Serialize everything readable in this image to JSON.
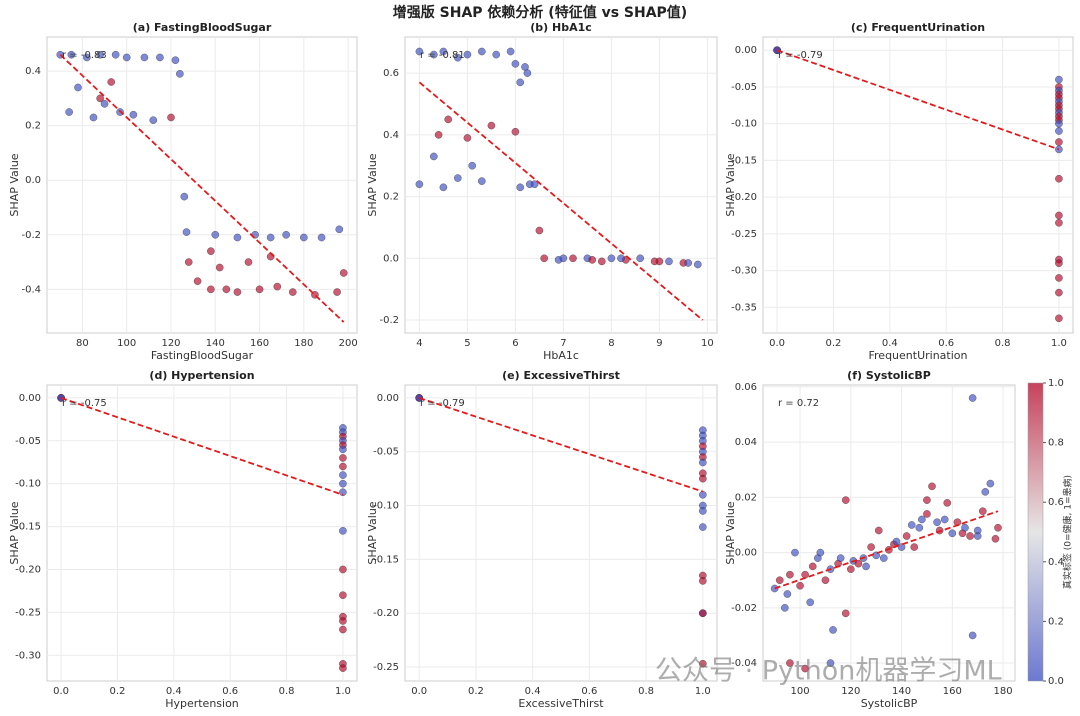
{
  "title": "增强版 SHAP 依赖分析 (特征值 vs SHAP值)",
  "watermark": "公众号 · Python机器学习ML",
  "colorbar": {
    "label": "真实标签 (0=健康, 1=患病)",
    "clim": [
      0,
      1
    ],
    "cmap": [
      "#3b4cc0",
      "#dddddd",
      "#b40426"
    ],
    "ticks": [
      {
        "value": 0,
        "label": "0.0"
      },
      0.2,
      0.4,
      0.6,
      0.8,
      {
        "value": 1,
        "label": "1.0"
      }
    ]
  },
  "chart_data": [
    {
      "type": "scatter",
      "title": "(a) FastingBloodSugar",
      "xlabel": "FastingBloodSugar",
      "ylabel": "SHAP Value",
      "annotation": "r = -0.83",
      "x": [
        70,
        75,
        82,
        88,
        95,
        100,
        108,
        115,
        122,
        124,
        74,
        78,
        85,
        90,
        97,
        103,
        112,
        120,
        93,
        88,
        126,
        127,
        140,
        150,
        158,
        165,
        172,
        180,
        188,
        196,
        128,
        132,
        138,
        145,
        150,
        160,
        168,
        175,
        185,
        195,
        138,
        155,
        165,
        198,
        142
      ],
      "y": [
        0.46,
        0.46,
        0.45,
        0.46,
        0.46,
        0.45,
        0.45,
        0.45,
        0.44,
        0.39,
        0.25,
        0.34,
        0.23,
        0.28,
        0.25,
        0.24,
        0.22,
        0.23,
        0.36,
        0.3,
        -0.06,
        -0.19,
        -0.2,
        -0.21,
        -0.2,
        -0.21,
        -0.2,
        -0.21,
        -0.21,
        -0.18,
        -0.3,
        -0.37,
        -0.4,
        -0.4,
        -0.41,
        -0.4,
        -0.39,
        -0.41,
        -0.42,
        -0.41,
        -0.26,
        -0.3,
        -0.28,
        -0.34,
        -0.32
      ],
      "c": [
        0,
        0,
        0,
        0,
        0,
        0,
        0,
        0,
        0,
        0,
        0,
        0,
        0,
        0,
        0,
        0,
        0,
        1,
        1,
        1,
        0,
        0,
        0,
        0,
        0,
        0,
        0,
        0,
        0,
        0,
        1,
        1,
        1,
        1,
        1,
        1,
        1,
        1,
        1,
        1,
        1,
        1,
        1,
        1,
        1
      ],
      "trend": {
        "x": [
          70,
          198
        ],
        "y": [
          0.46,
          -0.52
        ]
      },
      "xlim": [
        64,
        204
      ],
      "ylim": [
        -0.56,
        0.525
      ],
      "xticks": [
        80,
        100,
        120,
        140,
        160,
        180,
        200
      ],
      "yticks": [
        -0.4,
        -0.2,
        {
          "value": 0,
          "label": "0.0"
        },
        0.2,
        0.4
      ]
    },
    {
      "type": "scatter",
      "title": "(b) HbA1c",
      "xlabel": "HbA1c",
      "ylabel": "SHAP Value",
      "annotation": "r = -0.81",
      "x": [
        4.0,
        4.3,
        4.5,
        4.8,
        5.0,
        5.3,
        5.6,
        5.9,
        6.0,
        6.2,
        6.25,
        6.1,
        4.0,
        4.3,
        4.5,
        4.8,
        5.1,
        5.3,
        6.1,
        6.3,
        6.4,
        4.4,
        4.6,
        5.0,
        5.5,
        6.0,
        6.5,
        6.6,
        6.9,
        7.2,
        7.5,
        7.8,
        8.0,
        8.3,
        8.6,
        8.9,
        9.2,
        9.5,
        9.8,
        7.0,
        7.6,
        8.2,
        9.0,
        9.6
      ],
      "y": [
        0.67,
        0.66,
        0.67,
        0.65,
        0.66,
        0.67,
        0.66,
        0.67,
        0.63,
        0.62,
        0.6,
        0.57,
        0.24,
        0.33,
        0.23,
        0.26,
        0.3,
        0.25,
        0.23,
        0.24,
        0.24,
        0.4,
        0.45,
        0.39,
        0.43,
        0.41,
        0.09,
        0,
        -0.005,
        0,
        0,
        -0.01,
        0,
        -0.005,
        0,
        -0.01,
        -0.01,
        -0.015,
        -0.02,
        0,
        -0.005,
        0,
        -0.01,
        -0.015
      ],
      "c": [
        0,
        0,
        0,
        0,
        0,
        0,
        0,
        0,
        0,
        0,
        0,
        0,
        0,
        0,
        0,
        0,
        0,
        0,
        0,
        0,
        0,
        1,
        1,
        1,
        1,
        1,
        1,
        1,
        0,
        1,
        0,
        1,
        0,
        1,
        0,
        1,
        0,
        1,
        0,
        0,
        1,
        0,
        1,
        0
      ],
      "trend": {
        "x": [
          4,
          9.9
        ],
        "y": [
          0.57,
          -0.2
        ]
      },
      "xlim": [
        3.7,
        10.2
      ],
      "ylim": [
        -0.242,
        0.717
      ],
      "xticks": [
        4,
        5,
        6,
        7,
        8,
        9,
        10
      ],
      "yticks": [
        -0.2,
        {
          "value": 0,
          "label": "0.0"
        },
        0.2,
        0.4,
        0.6
      ]
    },
    {
      "type": "scatter",
      "title": "(c) FrequentUrination",
      "xlabel": "FrequentUrination",
      "ylabel": "SHAP Value",
      "annotation": "r = -0.79",
      "x": [
        0,
        0,
        0,
        1,
        1,
        1,
        1,
        1,
        1,
        1,
        1,
        1,
        1,
        1,
        1,
        1,
        1,
        1,
        1,
        1,
        1,
        1,
        1,
        1,
        1,
        1
      ],
      "y": [
        0,
        0,
        0,
        -0.04,
        -0.05,
        -0.055,
        -0.06,
        -0.065,
        -0.07,
        -0.075,
        -0.08,
        -0.085,
        -0.09,
        -0.095,
        -0.1,
        -0.11,
        -0.125,
        -0.135,
        -0.175,
        -0.225,
        -0.235,
        -0.285,
        -0.29,
        -0.31,
        -0.33,
        -0.365
      ],
      "c": [
        0,
        1,
        0,
        0,
        1,
        0,
        1,
        1,
        0,
        1,
        1,
        0,
        1,
        1,
        0,
        0,
        1,
        0,
        1,
        1,
        1,
        1,
        1,
        1,
        1,
        1
      ],
      "trend": {
        "x": [
          0,
          1
        ],
        "y": [
          0,
          -0.135
        ]
      },
      "xlim": [
        -0.05,
        1.05
      ],
      "ylim": [
        -0.385,
        0.018
      ],
      "xticks": [
        {
          "value": 0,
          "label": "0.0"
        },
        0.2,
        0.4,
        0.6,
        0.8,
        {
          "value": 1,
          "label": "1.0"
        }
      ],
      "yticks": [
        {
          "value": 0,
          "label": "0.00"
        },
        -0.05,
        {
          "value": -0.1,
          "label": "-0.10"
        },
        -0.15,
        {
          "value": -0.2,
          "label": "-0.20"
        },
        -0.25,
        {
          "value": -0.3,
          "label": "-0.30"
        },
        -0.35
      ]
    },
    {
      "type": "scatter",
      "title": "(d) Hypertension",
      "xlabel": "Hypertension",
      "ylabel": "SHAP Value",
      "annotation": "r = -0.75",
      "x": [
        0,
        0,
        0,
        1,
        1,
        1,
        1,
        1,
        1,
        1,
        1,
        1,
        1,
        1,
        1,
        1,
        1,
        1,
        1,
        1,
        1,
        1
      ],
      "y": [
        0,
        0,
        0,
        -0.035,
        -0.04,
        -0.045,
        -0.05,
        -0.055,
        -0.06,
        -0.07,
        -0.08,
        -0.09,
        -0.1,
        -0.11,
        -0.155,
        -0.2,
        -0.23,
        -0.255,
        -0.26,
        -0.27,
        -0.31,
        -0.315
      ],
      "c": [
        0,
        1,
        0,
        0,
        0,
        1,
        0,
        1,
        0,
        1,
        1,
        0,
        0,
        0,
        0,
        1,
        1,
        1,
        1,
        1,
        1,
        1
      ],
      "trend": {
        "x": [
          0,
          1
        ],
        "y": [
          0,
          -0.113
        ]
      },
      "xlim": [
        -0.05,
        1.05
      ],
      "ylim": [
        -0.33,
        0.015
      ],
      "xticks": [
        {
          "value": 0,
          "label": "0.0"
        },
        0.2,
        0.4,
        0.6,
        0.8,
        {
          "value": 1,
          "label": "1.0"
        }
      ],
      "yticks": [
        {
          "value": 0,
          "label": "0.00"
        },
        -0.05,
        {
          "value": -0.1,
          "label": "-0.10"
        },
        -0.15,
        {
          "value": -0.2,
          "label": "-0.20"
        },
        -0.25,
        {
          "value": -0.3,
          "label": "-0.30"
        }
      ]
    },
    {
      "type": "scatter",
      "title": "(e) ExcessiveThirst",
      "xlabel": "ExcessiveThirst",
      "ylabel": "SHAP Value",
      "annotation": "r = -0.79",
      "x": [
        0,
        0,
        0,
        1,
        1,
        1,
        1,
        1,
        1,
        1,
        1,
        1,
        1,
        1,
        1,
        1,
        1,
        1,
        1,
        1,
        1
      ],
      "y": [
        0,
        0,
        0,
        -0.03,
        -0.035,
        -0.04,
        -0.045,
        -0.05,
        -0.055,
        -0.06,
        -0.07,
        -0.075,
        -0.09,
        -0.1,
        -0.105,
        -0.12,
        -0.165,
        -0.17,
        -0.2,
        -0.2,
        -0.247
      ],
      "c": [
        0,
        1,
        0,
        0,
        0,
        0,
        1,
        0,
        1,
        0,
        1,
        1,
        0,
        0,
        0,
        0,
        1,
        1,
        0,
        1,
        1
      ],
      "trend": {
        "x": [
          0,
          1
        ],
        "y": [
          0,
          -0.087
        ]
      },
      "xlim": [
        -0.05,
        1.05
      ],
      "ylim": [
        -0.263,
        0.012
      ],
      "xticks": [
        {
          "value": 0,
          "label": "0.0"
        },
        0.2,
        0.4,
        0.6,
        0.8,
        {
          "value": 1,
          "label": "1.0"
        }
      ],
      "yticks": [
        {
          "value": 0,
          "label": "0.00"
        },
        -0.05,
        {
          "value": -0.1,
          "label": "-0.10"
        },
        -0.15,
        {
          "value": -0.2,
          "label": "-0.20"
        },
        -0.25
      ]
    },
    {
      "type": "scatter",
      "title": "(f) SystolicBP",
      "xlabel": "SystolicBP",
      "ylabel": "SHAP Value",
      "annotation": "r = 0.72",
      "x": [
        90,
        92,
        94,
        95,
        96,
        98,
        100,
        102,
        104,
        105,
        107,
        108,
        110,
        112,
        113,
        115,
        116,
        118,
        120,
        121,
        123,
        125,
        126,
        128,
        130,
        131,
        133,
        135,
        137,
        138,
        140,
        142,
        144,
        145,
        147,
        148,
        150,
        152,
        154,
        155,
        157,
        158,
        160,
        162,
        164,
        165,
        167,
        168,
        170,
        172,
        173,
        175,
        177,
        178,
        96,
        112,
        118,
        150,
        168,
        170,
        102
      ],
      "y": [
        -0.013,
        -0.01,
        -0.02,
        -0.015,
        -0.008,
        0,
        -0.012,
        -0.008,
        -0.018,
        -0.005,
        -0.002,
        0,
        -0.01,
        -0.006,
        -0.028,
        -0.004,
        -0.002,
        -0.022,
        -0.006,
        -0.003,
        -0.004,
        -0.002,
        -0.005,
        0.002,
        -0.001,
        0.008,
        -0.002,
        0.001,
        0.003,
        0.004,
        0.002,
        0.006,
        0.01,
        0.002,
        0.009,
        0.012,
        0.019,
        0.024,
        0.011,
        0.008,
        0.012,
        0.018,
        0.007,
        0.011,
        0.007,
        0.009,
        0.006,
        0.056,
        0.008,
        0.015,
        0.022,
        0.025,
        0.005,
        0.009,
        -0.04,
        -0.04,
        0.019,
        0.014,
        -0.03,
        0.006,
        -0.042
      ],
      "c": [
        0,
        1,
        0,
        0,
        1,
        0,
        1,
        1,
        0,
        1,
        0,
        0,
        1,
        0,
        0,
        1,
        0,
        1,
        1,
        0,
        1,
        0,
        0,
        1,
        0,
        1,
        0,
        1,
        1,
        0,
        0,
        1,
        0,
        1,
        0,
        0,
        1,
        1,
        0,
        1,
        0,
        1,
        0,
        1,
        1,
        0,
        1,
        0,
        0,
        1,
        0,
        0,
        1,
        1,
        1,
        0,
        1,
        1,
        0,
        0,
        1
      ],
      "trend": {
        "x": [
          90,
          178
        ],
        "y": [
          -0.013,
          0.015
        ]
      },
      "xlim": [
        85.4,
        184.7
      ],
      "ylim": [
        -0.0465,
        0.0607
      ],
      "xticks": [
        100,
        120,
        140,
        160,
        180
      ],
      "yticks": [
        -0.04,
        -0.02,
        {
          "value": 0,
          "label": "0.00"
        },
        0.02,
        0.04,
        0.06
      ]
    }
  ]
}
